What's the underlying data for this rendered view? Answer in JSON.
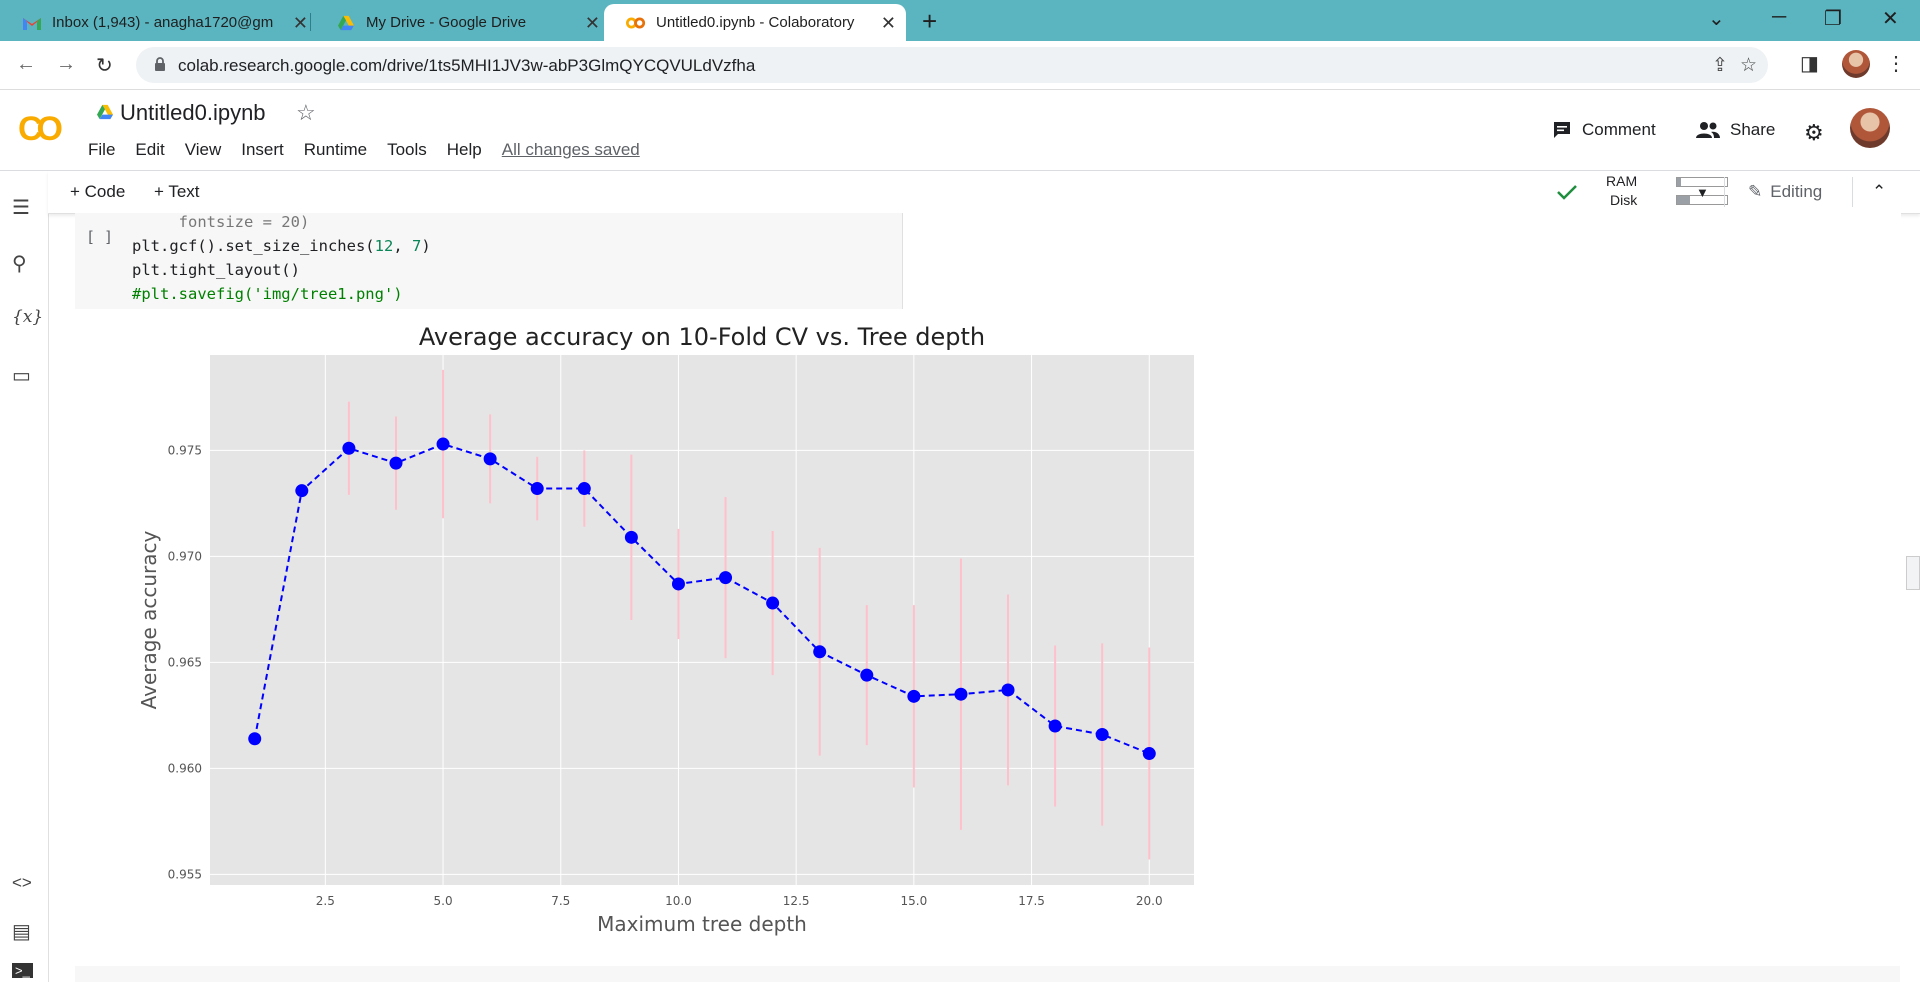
{
  "browser": {
    "tabs": [
      {
        "title": "Inbox (1,943) - anagha1720@gm",
        "icon": "gmail-icon"
      },
      {
        "title": "My Drive - Google Drive",
        "icon": "drive-icon"
      },
      {
        "title": "Untitled0.ipynb - Colaboratory",
        "icon": "colab-icon",
        "active": true
      }
    ],
    "url": "colab.research.google.com/drive/1ts5MHI1JV3w-abP3GlmQYCQVULdVzfha"
  },
  "colab": {
    "logo": "CO",
    "notebook_title": "Untitled0.ipynb",
    "menu": [
      "File",
      "Edit",
      "View",
      "Insert",
      "Runtime",
      "Tools",
      "Help"
    ],
    "save_status": "All changes saved",
    "comment_label": "Comment",
    "share_label": "Share",
    "toolbar": {
      "code_label": "+ Code",
      "text_label": "+ Text",
      "ram_label": "RAM",
      "disk_label": "Disk",
      "editing_label": "Editing"
    }
  },
  "cell": {
    "run_indicator": "[ ]",
    "lines": {
      "l0": "     fontsize = 20)",
      "l1a": "plt.gcf().set_size_inches(",
      "l1n1": "12",
      "l1c": ", ",
      "l1n2": "7",
      "l1e": ")",
      "l2": "plt.tight_layout()",
      "l3": "#plt.savefig('img/tree1.png')"
    }
  },
  "chart_data": {
    "type": "line",
    "title": "Average accuracy on 10-Fold CV vs. Tree depth",
    "xlabel": "Maximum tree depth",
    "ylabel": "Average accuracy",
    "xlim": [
      0.05,
      20.95
    ],
    "ylim": [
      0.9545,
      0.9795
    ],
    "xticks": [
      "2.5",
      "5.0",
      "7.5",
      "10.0",
      "12.5",
      "15.0",
      "17.5",
      "20.0"
    ],
    "yticks": [
      "0.955",
      "0.960",
      "0.965",
      "0.970",
      "0.975"
    ],
    "grid": true,
    "line_color": "#0000ff",
    "error_color": "#ffc0cb",
    "x": [
      1,
      2,
      3,
      4,
      5,
      6,
      7,
      8,
      9,
      10,
      11,
      12,
      13,
      14,
      15,
      16,
      17,
      18,
      19,
      20
    ],
    "y": [
      0.9614,
      0.9731,
      0.9751,
      0.9744,
      0.9753,
      0.9746,
      0.9732,
      0.9732,
      0.9709,
      0.9687,
      0.969,
      0.9678,
      0.9655,
      0.9644,
      0.9634,
      0.9635,
      0.9637,
      0.962,
      0.9616,
      0.9607
    ],
    "yerr": [
      0.0,
      0.0,
      0.0022,
      0.0022,
      0.0035,
      0.0021,
      0.0015,
      0.0018,
      0.0039,
      0.0026,
      0.0038,
      0.0034,
      0.0049,
      0.0033,
      0.0043,
      0.0064,
      0.0045,
      0.0038,
      0.0043,
      0.005
    ]
  }
}
